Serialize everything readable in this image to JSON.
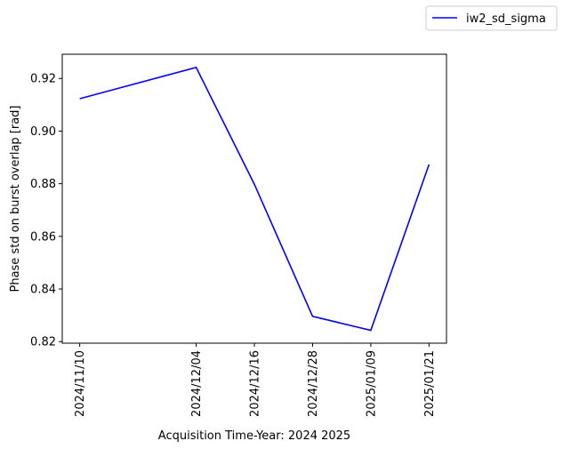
{
  "chart_data": {
    "type": "line",
    "title": "",
    "xlabel": "Acquisition Time-Year: 2024 2025",
    "ylabel": "Phase std on burst overlap [rad]",
    "x": [
      "2024/11/10",
      "2024/12/04",
      "2024/12/16",
      "2024/12/28",
      "2025/01/09",
      "2025/01/21"
    ],
    "x_tick_labels": [
      "2024/11/10",
      "2024/12/04",
      "2024/12/16",
      "2024/12/28",
      "2025/01/09",
      "2025/01/21"
    ],
    "series": [
      {
        "name": "iw2_sd_sigma",
        "color": "#0000ff",
        "values": [
          0.9123,
          0.9242,
          0.8798,
          0.8296,
          0.8243,
          0.8873
        ]
      }
    ],
    "ylim": [
      0.8194,
      0.9292
    ],
    "yticks": [
      0.82,
      0.84,
      0.86,
      0.88,
      0.9,
      0.92
    ],
    "ytick_labels": [
      "0.82",
      "0.84",
      "0.86",
      "0.88",
      "0.90",
      "0.92"
    ],
    "grid": false,
    "legend": "top-right, outside"
  }
}
